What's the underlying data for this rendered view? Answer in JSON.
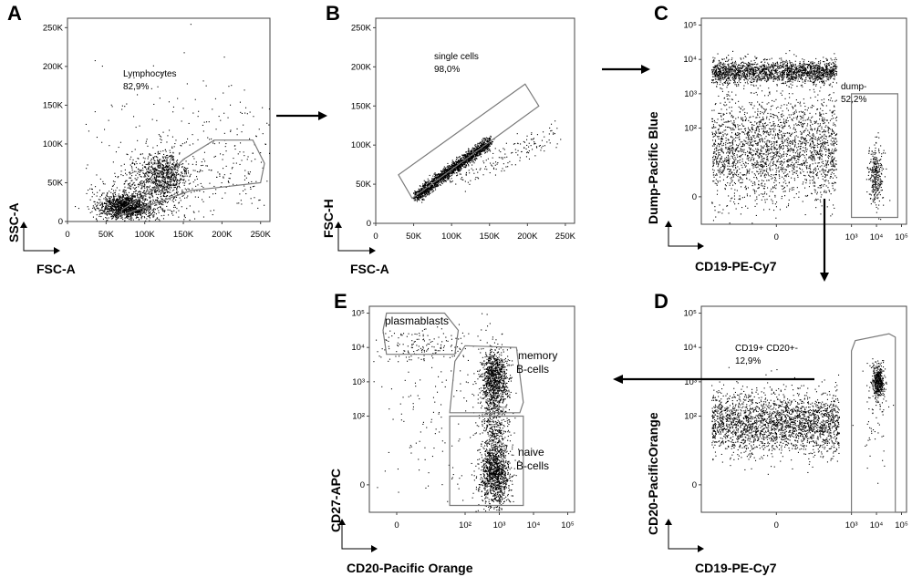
{
  "chart_data": [
    {
      "type": "scatter",
      "panel": "A",
      "xlabel": "FSC-A",
      "ylabel": "SSC-A",
      "x_ticks": [
        "0",
        "50K",
        "100K",
        "150K",
        "200K",
        "250K"
      ],
      "y_ticks": [
        "0",
        "50K",
        "100K",
        "150K",
        "200K",
        "250K"
      ],
      "xlim": [
        0,
        262144
      ],
      "ylim": [
        0,
        262144
      ],
      "gates": [
        {
          "name": "Lymphocytes",
          "value": "82,9%",
          "polygon": [
            [
              70000,
              8000
            ],
            [
              160000,
              40000
            ],
            [
              250000,
              50000
            ],
            [
              255000,
              75000
            ],
            [
              240000,
              105000
            ],
            [
              190000,
              105000
            ],
            [
              150000,
              80000
            ],
            [
              110000,
              40000
            ],
            [
              70000,
              15000
            ]
          ]
        }
      ],
      "populations": [
        {
          "cx": 75000,
          "cy": 20000,
          "sx": 17000,
          "sy": 8000,
          "n": 1300
        },
        {
          "cx": 125000,
          "cy": 60000,
          "sx": 16000,
          "sy": 15000,
          "n": 650
        },
        {
          "cx": 105000,
          "cy": 40000,
          "sx": 30000,
          "sy": 22000,
          "n": 550
        },
        {
          "cx": 150000,
          "cy": 90000,
          "sx": 60000,
          "sy": 60000,
          "n": 260
        },
        {
          "cx": 230000,
          "cy": 80000,
          "sx": 25000,
          "sy": 35000,
          "n": 90
        }
      ]
    },
    {
      "type": "scatter",
      "panel": "B",
      "xlabel": "FSC-A",
      "ylabel": "FSC-H",
      "x_ticks": [
        "0",
        "50K",
        "100K",
        "150K",
        "200K",
        "250K"
      ],
      "y_ticks": [
        "0",
        "50K",
        "100K",
        "150K",
        "200K",
        "250K"
      ],
      "xlim": [
        0,
        262144
      ],
      "ylim": [
        0,
        262144
      ],
      "gates": [
        {
          "name": "single cells",
          "value": "98,0%",
          "polygon": [
            [
              48000,
              32000
            ],
            [
              215000,
              150000
            ],
            [
              197000,
              178000
            ],
            [
              30000,
              62000
            ]
          ]
        }
      ],
      "populations": [
        {
          "diagonal": true,
          "x0": 52000,
          "x1": 150000,
          "y0": 35000,
          "y1": 105000,
          "spread": 4000,
          "n": 1800
        },
        {
          "diagonal": true,
          "x0": 100000,
          "x1": 235000,
          "y0": 55000,
          "y1": 115000,
          "spread": 9000,
          "n": 160
        }
      ]
    },
    {
      "type": "scatter",
      "panel": "C",
      "xlabel": "CD19-PE-Cy7",
      "ylabel": "Dump-Pacific Blue",
      "x_ticks": [
        "0",
        "10³",
        "10⁴",
        "10⁵"
      ],
      "y_ticks": [
        "0",
        "10²",
        "10³",
        "10⁴",
        "10⁵"
      ],
      "xlim": [
        -3,
        5.2
      ],
      "ylim": [
        -0.8,
        5.2
      ],
      "gates": [
        {
          "name": "dump-",
          "value": "52,2%",
          "polygon": [
            [
              3.0,
              -0.6
            ],
            [
              4.85,
              -0.6
            ],
            [
              4.85,
              3.0
            ],
            [
              3.0,
              3.0
            ]
          ]
        }
      ],
      "populations": [
        {
          "cx": -0.2,
          "cy": 3.65,
          "sx": 1.25,
          "sy": 0.17,
          "n": 1800,
          "uniform_x": true,
          "xmin": -2.6,
          "xmax": 2.4
        },
        {
          "cx": -0.2,
          "cy": 1.4,
          "sx": 1.25,
          "sy": 0.75,
          "n": 2300,
          "uniform_x": true,
          "xmin": -2.6,
          "xmax": 2.4
        },
        {
          "cx": 3.95,
          "cy": 0.6,
          "sx": 0.15,
          "sy": 0.45,
          "n": 300
        }
      ]
    },
    {
      "type": "scatter",
      "panel": "D",
      "xlabel": "CD19-PE-Cy7",
      "ylabel": "CD20-PacificOrange",
      "x_ticks": [
        "0",
        "10³",
        "10⁴",
        "10⁵"
      ],
      "y_ticks": [
        "0",
        "10²",
        "10³",
        "10⁴",
        "10⁵"
      ],
      "xlim": [
        -3,
        5.2
      ],
      "ylim": [
        -0.8,
        5.2
      ],
      "gates": [
        {
          "name": "CD19+ CD20+-",
          "value": "12,9%",
          "polygon": [
            [
              3.0,
              -0.8
            ],
            [
              4.75,
              -0.8
            ],
            [
              4.75,
              4.3
            ],
            [
              4.5,
              4.4
            ],
            [
              3.15,
              4.2
            ],
            [
              3.0,
              3.9
            ]
          ]
        }
      ],
      "populations": [
        {
          "cx": -0.2,
          "cy": 1.8,
          "sx": 1.2,
          "sy": 0.45,
          "n": 2400,
          "uniform_x": true,
          "xmin": -2.6,
          "xmax": 2.5
        },
        {
          "cx": 4.05,
          "cy": 3.0,
          "sx": 0.12,
          "sy": 0.25,
          "n": 420
        },
        {
          "cx": 3.9,
          "cy": 2.2,
          "sx": 0.3,
          "sy": 0.9,
          "n": 60
        }
      ]
    },
    {
      "type": "scatter",
      "panel": "E",
      "xlabel": "CD20-Pacific Orange",
      "ylabel": "CD27-APC",
      "x_ticks": [
        "0",
        "10²",
        "10³",
        "10⁴",
        "10⁵"
      ],
      "y_ticks": [
        "0",
        "10²",
        "10³",
        "10⁴",
        "10⁵"
      ],
      "xlim": [
        -0.8,
        5.2
      ],
      "ylim": [
        -0.8,
        5.2
      ],
      "gates": [
        {
          "name": "plasmablasts",
          "polygon": [
            [
              -0.3,
              3.8
            ],
            [
              1.7,
              3.8
            ],
            [
              1.8,
              4.5
            ],
            [
              1.4,
              5.0
            ],
            [
              -0.3,
              5.0
            ],
            [
              -0.4,
              4.5
            ]
          ]
        },
        {
          "name": "memory\nB-cells",
          "polygon": [
            [
              1.55,
              2.1
            ],
            [
              1.7,
              3.6
            ],
            [
              2.0,
              4.05
            ],
            [
              3.5,
              4.0
            ],
            [
              3.7,
              2.4
            ],
            [
              3.6,
              2.1
            ]
          ]
        },
        {
          "name": "naive\nB-cells",
          "polygon": [
            [
              1.55,
              -0.6
            ],
            [
              3.7,
              -0.6
            ],
            [
              3.7,
              2.0
            ],
            [
              1.55,
              2.0
            ]
          ]
        }
      ],
      "populations": [
        {
          "cx": 2.85,
          "cy": 3.15,
          "sx": 0.2,
          "sy": 0.4,
          "n": 900
        },
        {
          "cx": 2.85,
          "cy": 1.9,
          "sx": 0.2,
          "sy": 0.6,
          "n": 500
        },
        {
          "cx": 2.85,
          "cy": 0.3,
          "sx": 0.22,
          "sy": 0.45,
          "n": 1100
        },
        {
          "cx": 0.7,
          "cy": 4.1,
          "sx": 0.7,
          "sy": 0.25,
          "n": 150
        },
        {
          "cx": 1.2,
          "cy": 2.0,
          "sx": 1.0,
          "sy": 1.5,
          "n": 150
        }
      ]
    }
  ]
}
